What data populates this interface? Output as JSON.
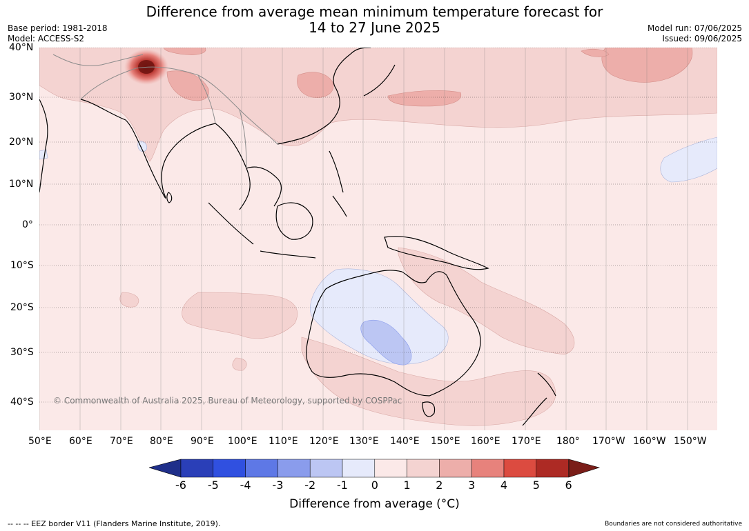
{
  "title_line1": "Difference from average mean minimum temperature forecast for",
  "title_line2": "14 to 27 June 2025",
  "base_period": "Base period: 1981-2018",
  "model": "Model: ACCESS-S2",
  "model_run": "Model run: 07/06/2025",
  "issued": "Issued: 09/06/2025",
  "copyright": "© Commonwealth of Australia 2025, Bureau of Meteorology, supported by COSPPac",
  "lat_labels": [
    "40°N",
    "30°N",
    "20°N",
    "10°N",
    "0°",
    "10°S",
    "20°S",
    "30°S",
    "40°S"
  ],
  "lon_labels": [
    "50°E",
    "60°E",
    "70°E",
    "80°E",
    "90°E",
    "100°E",
    "110°E",
    "120°E",
    "130°E",
    "140°E",
    "150°E",
    "160°E",
    "170°E",
    "180°",
    "170°W",
    "160°W",
    "150°W"
  ],
  "colorbar": {
    "label": "Difference from average (°C)",
    "ticks": [
      "-6",
      "-5",
      "-4",
      "-3",
      "-2",
      "-1",
      "0",
      "1",
      "2",
      "3",
      "4",
      "5",
      "6"
    ],
    "colors": [
      "#1f2f8a",
      "#2a3fb8",
      "#3050e0",
      "#5e78e6",
      "#8a9cec",
      "#bcc6f3",
      "#e6eafb",
      "#fbe9e8",
      "#f4d3d1",
      "#edaeaa",
      "#e7827c",
      "#dc4b40",
      "#ad2a24",
      "#7a1d18"
    ]
  },
  "footer_left": "--  --  -- EEZ border V11 (Flanders Marine Institute, 2019).",
  "footer_right": "Boundaries are not considered authoritative"
}
